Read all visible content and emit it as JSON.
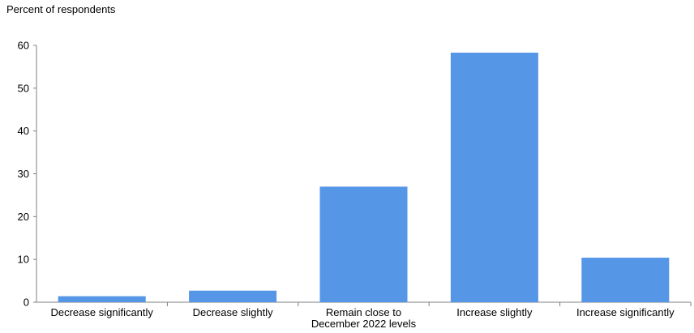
{
  "chart_data": {
    "type": "bar",
    "ylabel": "Percent of respondents",
    "categories": [
      [
        "Decrease significantly"
      ],
      [
        "Decrease slightly"
      ],
      [
        "Remain close to",
        "December 2022 levels"
      ],
      [
        "Increase slightly"
      ],
      [
        "Increase significantly"
      ]
    ],
    "values": [
      1.4,
      2.7,
      27,
      58.3,
      10.4
    ],
    "ylim": [
      0,
      60
    ],
    "yticks": [
      0,
      10,
      20,
      30,
      40,
      50,
      60
    ],
    "bar_color": "#5596E6",
    "grid": false
  }
}
